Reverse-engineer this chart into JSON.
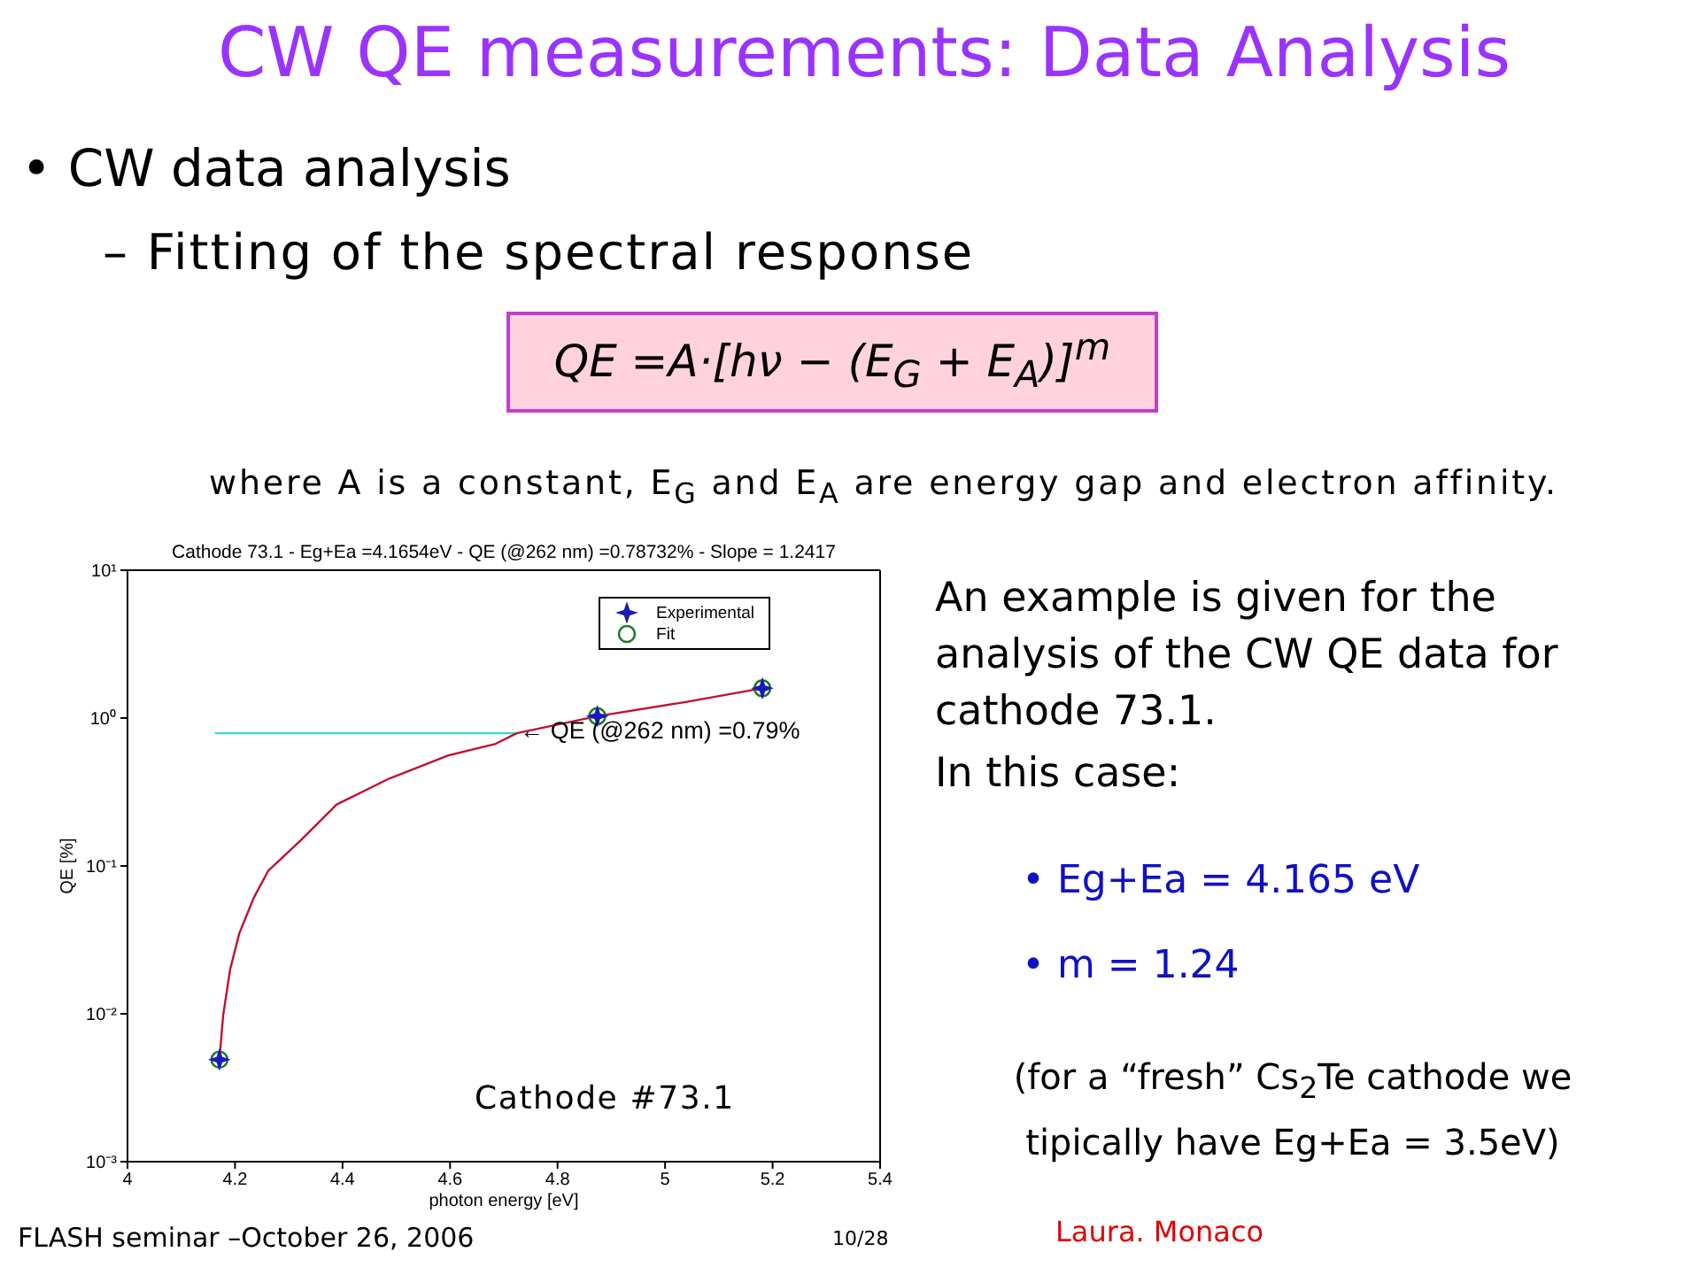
{
  "chart_data": {
    "type": "scatter",
    "title": "CW QE measurements: Data Analysis",
    "subtitle": "Cathode 73.1 - Eg+Ea =4.1654eV - QE (@262 nm) =0.78732% - Slope = 1.2417",
    "xlabel": "photon energy [eV]",
    "ylabel": "QE [%]",
    "xlim": [
      4,
      5.4
    ],
    "xticks": [
      4,
      4.2,
      4.4,
      4.6,
      4.8,
      5,
      5.2,
      5.4
    ],
    "ylim": [
      0.001,
      10
    ],
    "yticks": [
      {
        "value": 0.001,
        "label": "10⁻³"
      },
      {
        "value": 0.01,
        "label": "10⁻²"
      },
      {
        "value": 0.1,
        "label": "10⁻¹"
      },
      {
        "value": 1,
        "label": "10⁰"
      },
      {
        "value": 10,
        "label": "10¹"
      }
    ],
    "log": "y",
    "legend": "top right",
    "series": [
      {
        "name": "Experimental",
        "type": "scatter",
        "color": "#1a1ab8",
        "marker": "star",
        "x": [
          4.171,
          4.874,
          5.181
        ],
        "values": [
          0.0049,
          1.03,
          1.59
        ]
      },
      {
        "name": "Fit",
        "type": "scatter",
        "color": "#1f7a2a",
        "marker": "circle",
        "x": [
          4.171,
          4.874,
          5.181
        ],
        "values": [
          0.0049,
          1.03,
          1.59
        ]
      },
      {
        "type": "line",
        "color": "#c01030",
        "marker": "none",
        "x": [
          4.171,
          4.178,
          4.191,
          4.208,
          4.235,
          4.262,
          4.323,
          4.389,
          4.487,
          4.597,
          4.685,
          4.724,
          4.874,
          5.036,
          5.181
        ],
        "values": [
          0.0049,
          0.0098,
          0.02,
          0.035,
          0.061,
          0.093,
          0.15,
          0.26,
          0.39,
          0.56,
          0.67,
          0.79,
          1.03,
          1.28,
          1.59
        ]
      },
      {
        "type": "line",
        "color": "#3fd3e0",
        "marker": "none",
        "x": [
          4.164,
          4.724
        ],
        "values": [
          0.79,
          0.79
        ]
      }
    ],
    "annotations": [
      "• CW data analysis",
      "– Fitting of the spectral response",
      "QE =A·[hν − (E$_{G}$ + E$_{A}$)]$^{m}$",
      "where A is a constant, E$_{G}$ and E$_{A}$ are energy gap and electron affinity.",
      "An example is given for the analysis of the CW QE data for cathode 73.1.",
      "In this case:",
      "• Eg+Ea = 4.165 eV",
      "• m = 1.24",
      "(for a “fresh” Cs$_{2}$Te cathode we tipically have Eg+Ea = 3.5eV)",
      "Cathode #73.1",
      "FLASH seminar –October 26, 2006",
      "10/28",
      "Laura. Monaco",
      {
        "text": "← QE (@262 nm) =0.79%",
        "x": 4.73,
        "y": 0.79
      }
    ]
  }
}
